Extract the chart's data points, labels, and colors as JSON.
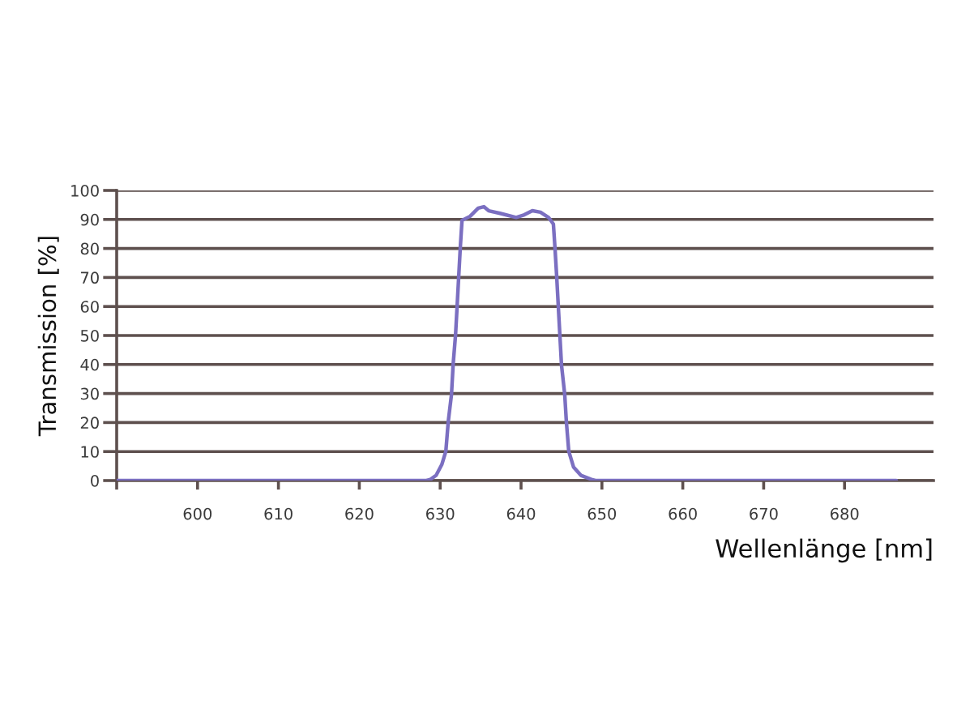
{
  "chart_data": {
    "type": "line",
    "xlabel": "Wellenlänge [nm]",
    "ylabel": "Transmission [%]",
    "x": [
      590,
      628.3,
      628.8,
      629.5,
      630.2,
      630.7,
      631.0,
      631.4,
      631.6,
      631.9,
      632.1,
      632.3,
      632.5,
      632.7,
      633.7,
      634.7,
      635.4,
      636.0,
      637.4,
      639.4,
      640.4,
      641.4,
      642.4,
      643.4,
      644.0,
      644.2,
      644.4,
      644.6,
      644.8,
      645.0,
      645.4,
      645.6,
      645.9,
      646.5,
      647.4,
      648.7,
      649.2,
      686.4
    ],
    "series": [
      {
        "color": "#7b6fc1",
        "values": [
          0,
          0,
          0.4,
          1.8,
          5.5,
          10.1,
          20.4,
          29.7,
          39.9,
          50.2,
          60.4,
          70.7,
          80.9,
          89.7,
          91.1,
          93.9,
          94.4,
          93.0,
          92.1,
          90.7,
          91.6,
          93.0,
          92.5,
          90.7,
          88.4,
          80.0,
          70.7,
          60.4,
          50.2,
          39.9,
          29.7,
          20.4,
          10.1,
          4.6,
          1.8,
          0.4,
          0,
          0
        ]
      }
    ],
    "xlim": [
      590,
      691
    ],
    "ylim": [
      0,
      100
    ],
    "xticks": [
      {
        "value": 590,
        "label": null
      },
      600,
      610,
      620,
      630,
      640,
      650,
      660,
      670,
      680
    ],
    "yticks": [
      0,
      10,
      20,
      30,
      40,
      50,
      60,
      70,
      80,
      90,
      100
    ],
    "grid": "y"
  }
}
